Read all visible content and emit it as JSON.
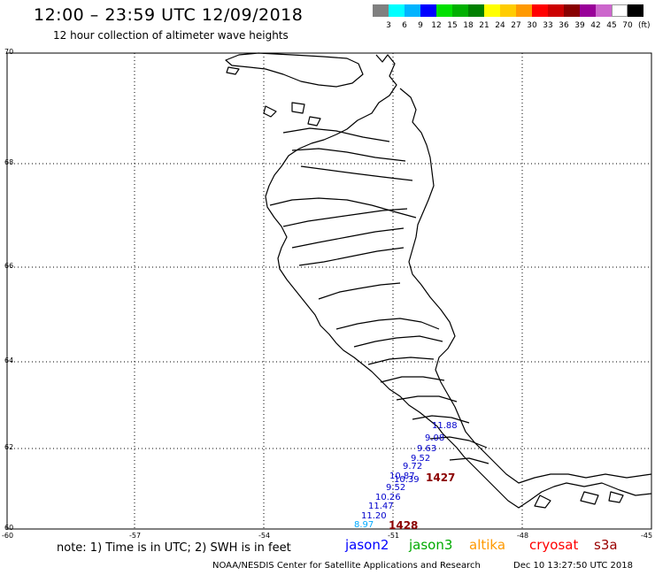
{
  "header": {
    "title": "12:00 – 23:59 UTC 12/09/2018",
    "subtitle": "12 hour collection of altimeter wave heights"
  },
  "scale": {
    "colors": [
      "#808080",
      "#00ffff",
      "#00b4ff",
      "#0000ff",
      "#00e000",
      "#00b000",
      "#008000",
      "#ffff00",
      "#ffcc00",
      "#ff9900",
      "#ff0000",
      "#cc0000",
      "#880000",
      "#990099",
      "#cc66cc",
      "#ffffff",
      "#000000"
    ],
    "labels": [
      "3",
      "6",
      "9",
      "12",
      "15",
      "18",
      "21",
      "24",
      "27",
      "30",
      "33",
      "36",
      "39",
      "42",
      "45",
      "70"
    ],
    "unit": "(ft)"
  },
  "axes": {
    "lat_labels": [
      "70",
      "68",
      "66",
      "64",
      "62",
      "60"
    ],
    "lon_labels": [
      "-60",
      "-57",
      "-54",
      "-51",
      "-48",
      "-45"
    ]
  },
  "observations": [
    {
      "value": "11.88",
      "color": "#0000cc"
    },
    {
      "value": "9.08",
      "color": "#0000cc"
    },
    {
      "value": "9.63",
      "color": "#0000cc"
    },
    {
      "value": "9.52",
      "color": "#0000cc"
    },
    {
      "value": "9.72",
      "color": "#0000cc"
    },
    {
      "value": "10.87",
      "color": "#0000cc"
    },
    {
      "value": "10.39",
      "color": "#0000cc"
    },
    {
      "value": "9.52",
      "color": "#0000cc"
    },
    {
      "value": "10.26",
      "color": "#0000cc"
    },
    {
      "value": "11.47",
      "color": "#0000cc"
    },
    {
      "value": "11.20",
      "color": "#0000cc"
    },
    {
      "value": "8.97",
      "color": "#00aaff"
    }
  ],
  "passes": [
    "1427",
    "1428"
  ],
  "footer": {
    "note": "note:  1) Time is in UTC;  2) SWH is in feet",
    "satellites": [
      {
        "name": "jason2",
        "color": "#0000ff"
      },
      {
        "name": "jason3",
        "color": "#00aa00"
      },
      {
        "name": "altika",
        "color": "#ff9900"
      },
      {
        "name": "cryosat",
        "color": "#ff0000"
      },
      {
        "name": "s3a",
        "color": "#990000"
      }
    ],
    "credit": "NOAA/NESDIS Center for Satellite Applications and Research",
    "timestamp": "Dec 10 13:27:50 UTC 2018"
  }
}
